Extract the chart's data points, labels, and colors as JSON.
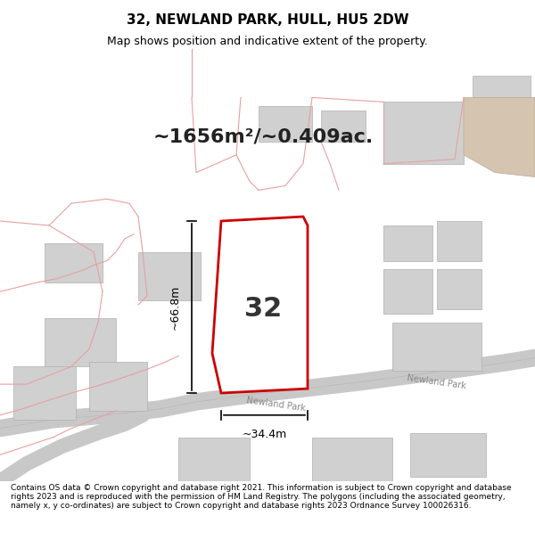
{
  "title": "32, NEWLAND PARK, HULL, HU5 2DW",
  "subtitle": "Map shows position and indicative extent of the property.",
  "area_text": "~1656m²/~0.409ac.",
  "label_32": "32",
  "dim_height": "~66.8m",
  "dim_width": "~34.4m",
  "road_label": "Newland Park",
  "footer_text": "Contains OS data © Crown copyright and database right 2021. This information is subject to Crown copyright and database rights 2023 and is reproduced with the permission of HM Land Registry. The polygons (including the associated geometry, namely x, y co-ordinates) are subject to Crown copyright and database rights 2023 Ordnance Survey 100026316.",
  "map_bg": "#f5f0eb",
  "plot_outline_color": "#cc0000",
  "road_color": "#d0d0d0",
  "building_color": "#d0d0d0",
  "map_line_color": "#e8a0a0",
  "footer_bg": "#ffffff",
  "header_bg": "#ffffff"
}
